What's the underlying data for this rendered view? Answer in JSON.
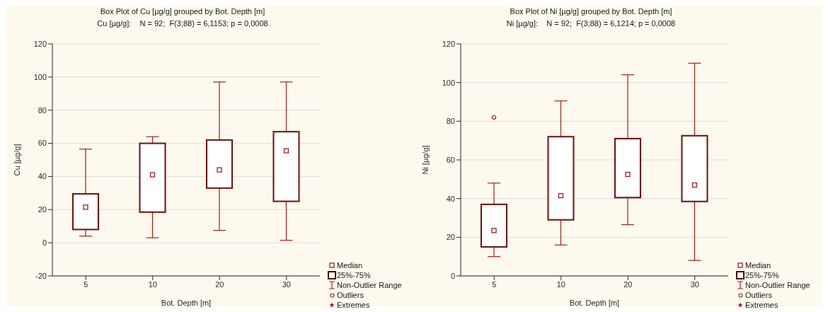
{
  "chart_data": [
    {
      "type": "box",
      "title": "Box Plot of Cu [µg/g] grouped by  Bot. Depth [m]",
      "subtitle": "Cu [µg/g]:    N = 92;  F(3;88) = 6,1153; p = 0,0008",
      "xlabel": "Bot. Depth [m]",
      "ylabel": "Cu [µg/g]",
      "categories": [
        "5",
        "10",
        "20",
        "30"
      ],
      "ylim": [
        -20,
        120
      ],
      "yticks": [
        -20,
        0,
        20,
        40,
        60,
        80,
        100,
        120
      ],
      "grid": "y",
      "color": "#6b0a0a",
      "boxes": [
        {
          "low": 4,
          "q1": 8,
          "median": 21.5,
          "q3": 29.5,
          "high": 56.5
        },
        {
          "low": 3,
          "q1": 18.5,
          "median": 41,
          "q3": 60,
          "high": 64
        },
        {
          "low": 7.5,
          "q1": 33,
          "median": 44,
          "q3": 62,
          "high": 97
        },
        {
          "low": 1.5,
          "q1": 25,
          "median": 55.5,
          "q3": 67,
          "high": 97
        }
      ],
      "annotations": [
        "Median",
        "25%-75%",
        "Non-Outlier Range",
        "Outliers",
        "Extremes"
      ]
    },
    {
      "type": "box",
      "title": "Box Plot of Ni [µg/g] grouped by  Bot. Depth [m]",
      "subtitle": "Ni [µg/g]:    N = 92;  F(3;88) = 6,1214; p = 0,0008",
      "xlabel": "Bot. Depth [m]",
      "ylabel": "Ni [µg/g]",
      "categories": [
        "5",
        "10",
        "20",
        "30"
      ],
      "ylim": [
        0,
        120
      ],
      "yticks": [
        0,
        20,
        40,
        60,
        80,
        100,
        120
      ],
      "grid": "y",
      "color": "#6b0a0a",
      "boxes": [
        {
          "low": 10,
          "q1": 15,
          "median": 23.5,
          "q3": 37,
          "high": 48,
          "outliers": [
            82
          ]
        },
        {
          "low": 16,
          "q1": 29,
          "median": 41.5,
          "q3": 72,
          "high": 90.5
        },
        {
          "low": 26.5,
          "q1": 40.5,
          "median": 52.5,
          "q3": 71,
          "high": 104
        },
        {
          "low": 8,
          "q1": 38.5,
          "median": 47,
          "q3": 72.5,
          "high": 110
        }
      ],
      "annotations": [
        "Median",
        "25%-75%",
        "Non-Outlier Range",
        "Outliers",
        "Extremes"
      ]
    }
  ]
}
